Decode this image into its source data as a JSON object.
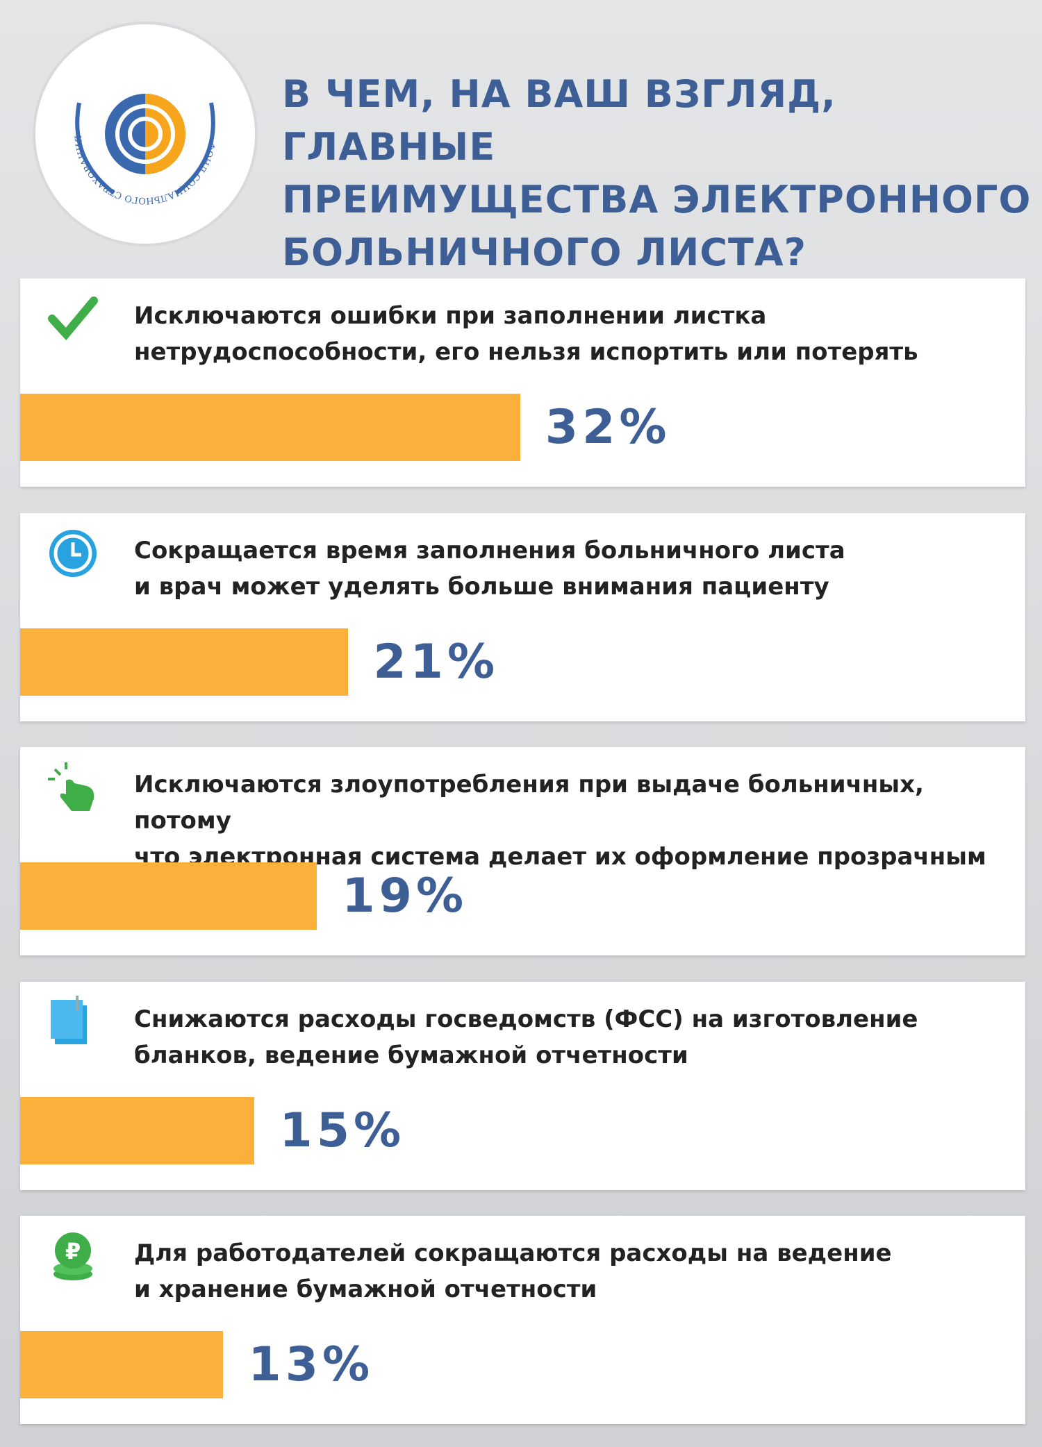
{
  "logo_text": "ФОНД СОЦИАЛЬНОГО СТРАХОВАНИЯ РОССИЙСКОЙ ФЕДЕРАЦИИ",
  "chart_data": {
    "type": "bar",
    "title": "В ЧЕМ, НА ВАШ ВЗГЛЯД, ГЛАВНЫЕ\nПРЕИМУЩЕСТВА ЭЛЕКТРОННОГО\nБОЛЬНИЧНОГО ЛИСТА?",
    "categories": [
      "Исключаются ошибки при заполнении листка\nнетрудоспособности, его нельзя испортить или потерять",
      "Сокращается время заполнения больничного листа\nи врач может уделять больше внимания пациенту",
      "Исключаются злоупотребления при выдаче больничных, потому\nчто электронная система делает их оформление прозрачным",
      "Снижаются расходы госведомств (ФСС) на изготовление\nбланков, ведение бумажной отчетности",
      "Для работодателей сокращаются расходы на ведение\nи хранение бумажной отчетности"
    ],
    "values": [
      32,
      21,
      19,
      15,
      13
    ],
    "value_labels": [
      "32%",
      "21%",
      "19%",
      "15%",
      "13%"
    ],
    "color": "#fbb03b"
  }
}
